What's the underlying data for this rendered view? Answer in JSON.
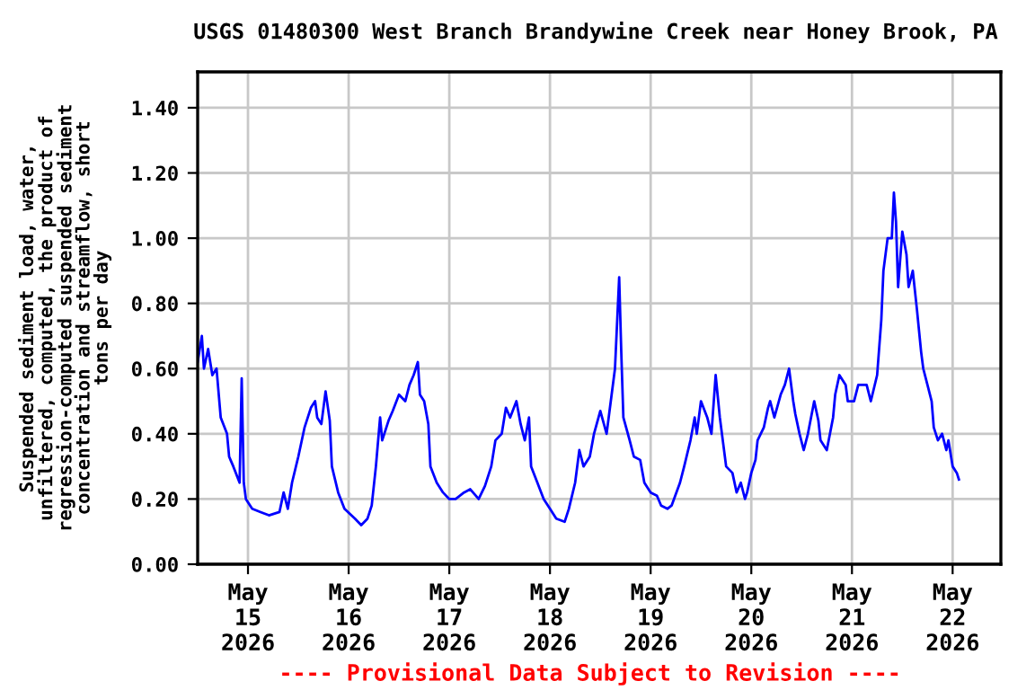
{
  "chart_data": {
    "type": "line",
    "title": "USGS 01480300 West Branch Brandywine Creek near Honey Brook, PA",
    "ylabel": "Suspended sediment load, water,\nunfiltered, computed, the product of\nregression-computed suspended sediment\nconcentration and streamflow, short\ntons per day",
    "annotations": [
      "---- Provisional Data Subject to Revision ----"
    ],
    "x": [
      "2026-05-14T12:00",
      "2026-05-14T13:00",
      "2026-05-14T13:30",
      "2026-05-14T14:30",
      "2026-05-14T15:30",
      "2026-05-14T16:30",
      "2026-05-14T17:30",
      "2026-05-14T19:00",
      "2026-05-14T19:30",
      "2026-05-14T20:30",
      "2026-05-14T22:00",
      "2026-05-14T22:30",
      "2026-05-14T23:00",
      "2026-05-14T23:30",
      "2026-05-15T01:00",
      "2026-05-15T03:00",
      "2026-05-15T05:00",
      "2026-05-15T07:30",
      "2026-05-15T08:30",
      "2026-05-15T09:30",
      "2026-05-15T10:30",
      "2026-05-15T12:00",
      "2026-05-15T13:30",
      "2026-05-15T15:00",
      "2026-05-15T16:00",
      "2026-05-15T16:30",
      "2026-05-15T17:30",
      "2026-05-15T18:30",
      "2026-05-15T19:30",
      "2026-05-15T20:00",
      "2026-05-15T21:30",
      "2026-05-15T23:00",
      "2026-05-16T01:30",
      "2026-05-16T03:00",
      "2026-05-16T04:30",
      "2026-05-16T05:30",
      "2026-05-16T06:30",
      "2026-05-16T07:30",
      "2026-05-16T08:00",
      "2026-05-16T09:30",
      "2026-05-16T10:30",
      "2026-05-16T12:00",
      "2026-05-16T13:30",
      "2026-05-16T14:30",
      "2026-05-16T15:30",
      "2026-05-16T16:30",
      "2026-05-16T17:00",
      "2026-05-16T18:00",
      "2026-05-16T19:00",
      "2026-05-16T19:30",
      "2026-05-16T21:00",
      "2026-05-16T22:30",
      "2026-05-17T00:00",
      "2026-05-17T01:30",
      "2026-05-17T03:30",
      "2026-05-17T05:00",
      "2026-05-17T07:00",
      "2026-05-17T08:30",
      "2026-05-17T10:00",
      "2026-05-17T11:00",
      "2026-05-17T12:30",
      "2026-05-17T13:30",
      "2026-05-17T14:30",
      "2026-05-17T16:00",
      "2026-05-17T17:00",
      "2026-05-17T18:00",
      "2026-05-17T19:00",
      "2026-05-17T19:30",
      "2026-05-17T21:00",
      "2026-05-17T22:30",
      "2026-05-18T00:00",
      "2026-05-18T01:30",
      "2026-05-18T03:30",
      "2026-05-18T04:30",
      "2026-05-18T06:00",
      "2026-05-18T07:00",
      "2026-05-18T08:00",
      "2026-05-18T09:30",
      "2026-05-18T10:30",
      "2026-05-18T12:00",
      "2026-05-18T13:30",
      "2026-05-18T14:30",
      "2026-05-18T15:30",
      "2026-05-18T16:30",
      "2026-05-18T17:00",
      "2026-05-18T17:30",
      "2026-05-18T19:00",
      "2026-05-18T20:00",
      "2026-05-18T21:30",
      "2026-05-18T22:30",
      "2026-05-19T00:00",
      "2026-05-19T01:30",
      "2026-05-19T02:30",
      "2026-05-19T04:00",
      "2026-05-19T05:00",
      "2026-05-19T07:00",
      "2026-05-19T08:00",
      "2026-05-19T09:30",
      "2026-05-19T10:30",
      "2026-05-19T11:00",
      "2026-05-19T12:00",
      "2026-05-19T13:30",
      "2026-05-19T14:30",
      "2026-05-19T15:30",
      "2026-05-19T16:30",
      "2026-05-19T17:00",
      "2026-05-19T18:00",
      "2026-05-19T19:30",
      "2026-05-19T20:30",
      "2026-05-19T21:30",
      "2026-05-19T22:30",
      "2026-05-19T23:00",
      "2026-05-20T00:00",
      "2026-05-20T01:00",
      "2026-05-20T01:30",
      "2026-05-20T03:00",
      "2026-05-20T04:00",
      "2026-05-20T04:30",
      "2026-05-20T05:30",
      "2026-05-20T07:00",
      "2026-05-20T08:00",
      "2026-05-20T09:00",
      "2026-05-20T10:00",
      "2026-05-20T10:30",
      "2026-05-20T11:30",
      "2026-05-20T12:30",
      "2026-05-20T13:30",
      "2026-05-20T15:00",
      "2026-05-20T16:00",
      "2026-05-20T16:30",
      "2026-05-20T18:00",
      "2026-05-20T19:30",
      "2026-05-20T20:00",
      "2026-05-20T21:00",
      "2026-05-20T22:30",
      "2026-05-20T23:00",
      "2026-05-21T00:30",
      "2026-05-21T01:30",
      "2026-05-21T03:30",
      "2026-05-21T04:30",
      "2026-05-21T06:00",
      "2026-05-21T07:00",
      "2026-05-21T07:30",
      "2026-05-21T08:30",
      "2026-05-21T09:30",
      "2026-05-21T10:00",
      "2026-05-21T10:30",
      "2026-05-21T11:00",
      "2026-05-21T12:00",
      "2026-05-21T13:00",
      "2026-05-21T13:30",
      "2026-05-21T14:30",
      "2026-05-21T15:30",
      "2026-05-21T16:30",
      "2026-05-21T17:00",
      "2026-05-21T18:00",
      "2026-05-21T19:00",
      "2026-05-21T19:30",
      "2026-05-21T20:30",
      "2026-05-21T21:30",
      "2026-05-21T22:30",
      "2026-05-21T23:00",
      "2026-05-22T00:00",
      "2026-05-22T01:00",
      "2026-05-22T01:30"
    ],
    "series": [
      {
        "color": "#0000ff",
        "values": [
          0.62,
          0.7,
          0.6,
          0.66,
          0.58,
          0.6,
          0.45,
          0.4,
          0.33,
          0.3,
          0.25,
          0.57,
          0.25,
          0.2,
          0.17,
          0.16,
          0.15,
          0.16,
          0.22,
          0.17,
          0.25,
          0.33,
          0.42,
          0.48,
          0.5,
          0.45,
          0.43,
          0.53,
          0.44,
          0.3,
          0.22,
          0.17,
          0.14,
          0.12,
          0.14,
          0.18,
          0.3,
          0.45,
          0.38,
          0.44,
          0.47,
          0.52,
          0.5,
          0.55,
          0.58,
          0.62,
          0.52,
          0.5,
          0.43,
          0.3,
          0.25,
          0.22,
          0.2,
          0.2,
          0.22,
          0.23,
          0.2,
          0.24,
          0.3,
          0.38,
          0.4,
          0.48,
          0.45,
          0.5,
          0.43,
          0.38,
          0.45,
          0.3,
          0.25,
          0.2,
          0.17,
          0.14,
          0.13,
          0.17,
          0.25,
          0.35,
          0.3,
          0.33,
          0.4,
          0.47,
          0.4,
          0.5,
          0.6,
          0.88,
          0.65,
          0.45,
          0.38,
          0.33,
          0.32,
          0.25,
          0.22,
          0.21,
          0.18,
          0.17,
          0.18,
          0.25,
          0.3,
          0.38,
          0.45,
          0.4,
          0.5,
          0.45,
          0.4,
          0.58,
          0.45,
          0.4,
          0.3,
          0.28,
          0.22,
          0.25,
          0.2,
          0.22,
          0.28,
          0.32,
          0.38,
          0.42,
          0.48,
          0.5,
          0.45,
          0.52,
          0.55,
          0.6,
          0.5,
          0.46,
          0.4,
          0.35,
          0.4,
          0.5,
          0.44,
          0.38,
          0.35,
          0.45,
          0.52,
          0.58,
          0.55,
          0.5,
          0.5,
          0.55,
          0.55,
          0.5,
          0.58,
          0.75,
          0.9,
          1.0,
          1.0,
          1.14,
          1.05,
          0.85,
          1.02,
          0.95,
          0.85,
          0.9,
          0.78,
          0.65,
          0.6,
          0.55,
          0.5,
          0.42,
          0.38,
          0.4,
          0.35,
          0.38,
          0.3,
          0.28,
          0.26
        ]
      }
    ],
    "xlim": [
      "2026-05-14T12:00",
      "2026-05-22T11:30"
    ],
    "xticks": [
      {
        "value": "2026-05-15",
        "label": "May\n15\n2026"
      },
      {
        "value": "2026-05-16",
        "label": "May\n16\n2026"
      },
      {
        "value": "2026-05-17",
        "label": "May\n17\n2026"
      },
      {
        "value": "2026-05-18",
        "label": "May\n18\n2026"
      },
      {
        "value": "2026-05-19",
        "label": "May\n19\n2026"
      },
      {
        "value": "2026-05-20",
        "label": "May\n20\n2026"
      },
      {
        "value": "2026-05-21",
        "label": "May\n21\n2026"
      },
      {
        "value": "2026-05-22",
        "label": "May\n22\n2026"
      }
    ],
    "ylim": [
      0,
      1.51
    ],
    "yticks": [
      {
        "value": 0,
        "label": "0.00"
      },
      {
        "value": 0.2,
        "label": "0.20"
      },
      {
        "value": 0.4,
        "label": "0.40"
      },
      {
        "value": 0.6,
        "label": "0.60"
      },
      {
        "value": 0.8,
        "label": "0.80"
      },
      {
        "value": 1.0,
        "label": "1.00"
      },
      {
        "value": 1.2,
        "label": "1.20"
      },
      {
        "value": 1.4,
        "label": "1.40"
      }
    ],
    "grid": true
  }
}
